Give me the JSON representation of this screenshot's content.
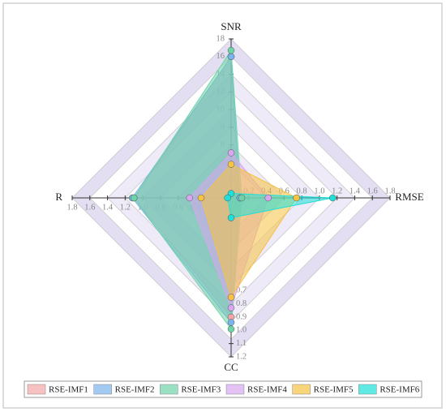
{
  "chart_data": {
    "type": "radar",
    "axes": [
      {
        "name": "SNR",
        "lim": [
          0,
          18
        ],
        "ticks": [
          2,
          4,
          6,
          8,
          10,
          12,
          14,
          16,
          18
        ]
      },
      {
        "name": "RMSE",
        "lim": [
          0,
          1.8
        ],
        "ticks": [
          0.2,
          0.4,
          0.6,
          0.8,
          {
            "value": 1.0,
            "label": "1.0"
          },
          1.2,
          1.4,
          1.6,
          1.8
        ]
      },
      {
        "name": "CC",
        "lim": [
          0,
          1.2
        ],
        "ticks": [
          0.7,
          0.8,
          0.9,
          {
            "value": 1.0,
            "label": "1.0"
          },
          1.1,
          1.2
        ]
      },
      {
        "name": "R",
        "lim": [
          0,
          1.8
        ],
        "ticks": [
          0.4,
          0.6,
          0.8,
          {
            "value": 1.0,
            "label": "1.0"
          },
          1.2,
          1.4,
          1.6,
          1.8
        ]
      }
    ],
    "series": [
      {
        "name": "RSE-IMF1",
        "color": "#f4a6a6",
        "values": [
          16,
          0.1,
          0.9,
          1.1
        ]
      },
      {
        "name": "RSE-IMF2",
        "color": "#7ab4ee",
        "values": [
          16,
          0.1,
          0.94,
          1.12
        ]
      },
      {
        "name": "RSE-IMF3",
        "color": "#6fd3a8",
        "values": [
          16.7,
          0.12,
          0.99,
          1.1
        ]
      },
      {
        "name": "RSE-IMF4",
        "color": "#d9a6f0",
        "values": [
          5.1,
          0.42,
          0.83,
          0.47
        ]
      },
      {
        "name": "RSE-IMF5",
        "color": "#f5c242",
        "values": [
          3.8,
          0.74,
          0.75,
          0.34
        ]
      },
      {
        "name": "RSE-IMF6",
        "color": "#1ee0d8",
        "values": [
          0.5,
          1.15,
          0.15,
          0.04
        ]
      }
    ]
  }
}
